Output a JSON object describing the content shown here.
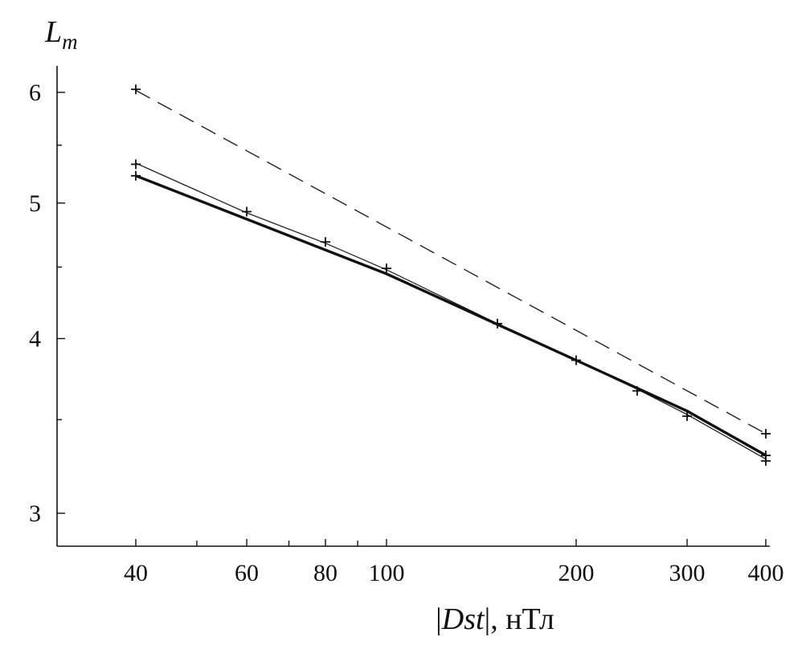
{
  "chart_data": {
    "type": "line",
    "ylabel_main": "L",
    "ylabel_sub": "m",
    "xlabel_abs_bar": "|",
    "xlabel_var": "Dst",
    "xlabel_unit": ", нТл",
    "x_scale": "log",
    "y_scale": "log",
    "xlim": [
      29,
      415
    ],
    "ylim": [
      2.8,
      6.3
    ],
    "x_ticks": [
      40,
      50,
      60,
      70,
      80,
      90,
      100,
      200,
      300,
      400
    ],
    "x_tick_labels": [
      {
        "value": 40,
        "text": "40"
      },
      {
        "value": 60,
        "text": "60"
      },
      {
        "value": 80,
        "text": "80"
      },
      {
        "value": 100,
        "text": "100"
      },
      {
        "value": 200,
        "text": "200"
      },
      {
        "value": 300,
        "text": "300"
      },
      {
        "value": 400,
        "text": "400"
      }
    ],
    "y_ticks": [
      3,
      3.5,
      4,
      4.5,
      5,
      5.5,
      6
    ],
    "y_tick_labels": [
      {
        "value": 3,
        "text": "3"
      },
      {
        "value": 4,
        "text": "4"
      },
      {
        "value": 5,
        "text": "5"
      },
      {
        "value": 6,
        "text": "6"
      }
    ],
    "grid": false,
    "series": [
      {
        "style": "dashed",
        "line": [
          [
            40,
            6.02
          ],
          [
            400,
            3.42
          ]
        ],
        "markers": [
          [
            40,
            6.03
          ],
          [
            400,
            3.42
          ]
        ]
      },
      {
        "style": "solid-thin",
        "line": [
          [
            40,
            5.34
          ],
          [
            60,
            4.92
          ],
          [
            80,
            4.68
          ],
          [
            100,
            4.48
          ],
          [
            150,
            4.1
          ],
          [
            200,
            3.86
          ],
          [
            250,
            3.68
          ],
          [
            300,
            3.53
          ],
          [
            400,
            3.28
          ]
        ],
        "markers": [
          [
            40,
            5.33
          ],
          [
            60,
            4.93
          ],
          [
            80,
            4.69
          ],
          [
            100,
            4.49
          ],
          [
            150,
            4.1
          ],
          [
            200,
            3.86
          ],
          [
            250,
            3.67
          ],
          [
            300,
            3.52
          ],
          [
            400,
            3.27
          ],
          [
            400,
            3.3
          ]
        ]
      },
      {
        "style": "solid-thick",
        "line": [
          [
            40,
            5.23
          ],
          [
            100,
            4.45
          ],
          [
            200,
            3.86
          ],
          [
            300,
            3.55
          ],
          [
            400,
            3.3
          ]
        ],
        "markers": [
          [
            40,
            5.23
          ]
        ]
      }
    ]
  }
}
